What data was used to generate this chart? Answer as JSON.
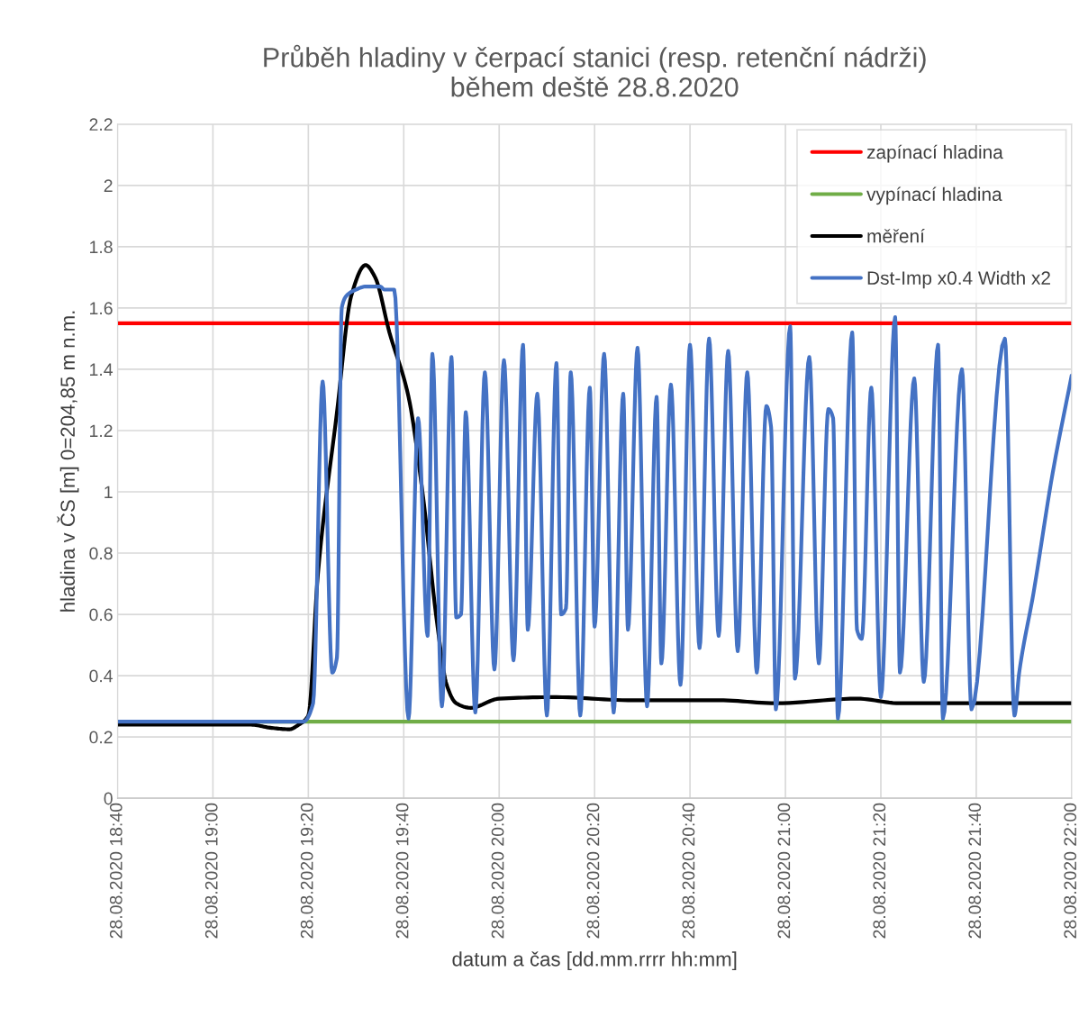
{
  "chart_data": {
    "type": "line",
    "title": "Průběh hladiny v čerpací stanici (resp. retenční nádrži)\nběhem deště 28.8.2020",
    "xlabel": "datum a čas [dd.mm.rrrr hh:mm]",
    "ylabel": "hladina v ČS [m] 0=204,85 m n.m.",
    "xlim": [
      "2020-08-28T18:40",
      "2020-08-28T22:00"
    ],
    "xticks": [
      {
        "value": "2020-08-28T18:40",
        "label": "28.08.2020 18:40"
      },
      {
        "value": "2020-08-28T19:00",
        "label": "28.08.2020 19:00"
      },
      {
        "value": "2020-08-28T19:20",
        "label": "28.08.2020 19:20"
      },
      {
        "value": "2020-08-28T19:40",
        "label": "28.08.2020 19:40"
      },
      {
        "value": "2020-08-28T20:00",
        "label": "28.08.2020 20:00"
      },
      {
        "value": "2020-08-28T20:20",
        "label": "28.08.2020 20:20"
      },
      {
        "value": "2020-08-28T20:40",
        "label": "28.08.2020 20:40"
      },
      {
        "value": "2020-08-28T21:00",
        "label": "28.08.2020 21:00"
      },
      {
        "value": "2020-08-28T21:20",
        "label": "28.08.2020 21:20"
      },
      {
        "value": "2020-08-28T21:40",
        "label": "28.08.2020 21:40"
      },
      {
        "value": "2020-08-28T22:00",
        "label": "28.08.2020 22:00"
      }
    ],
    "ylim": [
      0,
      2.2
    ],
    "yticks": [
      0,
      0.2,
      0.4,
      0.6,
      0.8,
      1,
      1.2,
      1.4,
      1.6,
      1.8,
      2,
      2.2
    ],
    "grid": true,
    "legend": "top right",
    "marker": "none",
    "line_style": "solid",
    "series": [
      {
        "name": "zapínací hladina",
        "color": "#ff0000",
        "x": [
          "2020-08-28T18:40",
          "2020-08-28T22:00"
        ],
        "values": [
          1.55,
          1.55
        ]
      },
      {
        "name": "vypínací hladina",
        "color": "#70ad47",
        "x": [
          "2020-08-28T18:40",
          "2020-08-28T22:00"
        ],
        "values": [
          0.25,
          0.25
        ]
      },
      {
        "name": "měření",
        "color": "#000000",
        "x": [
          "2020-08-28T18:40",
          "2020-08-28T19:08",
          "2020-08-28T19:12",
          "2020-08-28T19:16",
          "2020-08-28T19:18",
          "2020-08-28T19:20",
          "2020-08-28T19:22",
          "2020-08-28T19:26",
          "2020-08-28T19:29",
          "2020-08-28T19:32",
          "2020-08-28T19:34",
          "2020-08-28T19:37",
          "2020-08-28T19:41",
          "2020-08-28T19:44",
          "2020-08-28T19:47",
          "2020-08-28T19:49",
          "2020-08-28T19:51",
          "2020-08-28T19:54",
          "2020-08-28T20:00",
          "2020-08-28T20:12",
          "2020-08-28T20:27",
          "2020-08-28T20:46",
          "2020-08-28T20:58",
          "2020-08-28T21:15",
          "2020-08-28T21:24",
          "2020-08-28T22:00"
        ],
        "values": [
          0.24,
          0.24,
          0.23,
          0.225,
          0.24,
          0.27,
          0.73,
          1.26,
          1.64,
          1.74,
          1.7,
          1.52,
          1.31,
          0.99,
          0.57,
          0.37,
          0.31,
          0.295,
          0.325,
          0.33,
          0.32,
          0.32,
          0.31,
          0.325,
          0.31,
          0.31
        ]
      },
      {
        "name": "Dst-Imp x0.4 Width x2",
        "color": "#4472c4",
        "x": [
          "2020-08-28T18:40",
          "2020-08-28T19:19",
          "2020-08-28T19:21",
          "2020-08-28T19:23",
          "2020-08-28T19:25",
          "2020-08-28T19:26",
          "2020-08-28T19:27",
          "2020-08-28T19:28",
          "2020-08-28T19:30",
          "2020-08-28T19:32",
          "2020-08-28T19:35",
          "2020-08-28T19:36",
          "2020-08-28T19:38",
          "2020-08-28T19:41",
          "2020-08-28T19:43",
          "2020-08-28T19:45",
          "2020-08-28T19:46",
          "2020-08-28T19:48",
          "2020-08-28T19:50",
          "2020-08-28T19:51",
          "2020-08-28T19:52",
          "2020-08-28T19:53",
          "2020-08-28T19:55",
          "2020-08-28T19:57",
          "2020-08-28T19:59",
          "2020-08-28T20:01",
          "2020-08-28T20:03",
          "2020-08-28T20:05",
          "2020-08-28T20:06",
          "2020-08-28T20:08",
          "2020-08-28T20:10",
          "2020-08-28T20:12",
          "2020-08-28T20:13",
          "2020-08-28T20:14",
          "2020-08-28T20:15",
          "2020-08-28T20:17",
          "2020-08-28T20:19",
          "2020-08-28T20:20",
          "2020-08-28T20:22",
          "2020-08-28T20:24",
          "2020-08-28T20:26",
          "2020-08-28T20:27",
          "2020-08-28T20:29",
          "2020-08-28T20:31",
          "2020-08-28T20:33",
          "2020-08-28T20:34",
          "2020-08-28T20:36",
          "2020-08-28T20:38",
          "2020-08-28T20:40",
          "2020-08-28T20:42",
          "2020-08-28T20:44",
          "2020-08-28T20:46",
          "2020-08-28T20:48",
          "2020-08-28T20:50",
          "2020-08-28T20:52",
          "2020-08-28T20:54",
          "2020-08-28T20:56",
          "2020-08-28T20:57",
          "2020-08-28T20:58",
          "2020-08-28T21:01",
          "2020-08-28T21:02",
          "2020-08-28T21:05",
          "2020-08-28T21:07",
          "2020-08-28T21:09",
          "2020-08-28T21:10",
          "2020-08-28T21:11",
          "2020-08-28T21:14",
          "2020-08-28T21:15",
          "2020-08-28T21:16",
          "2020-08-28T21:18",
          "2020-08-28T21:20",
          "2020-08-28T21:23",
          "2020-08-28T21:24",
          "2020-08-28T21:27",
          "2020-08-28T21:29",
          "2020-08-28T21:32",
          "2020-08-28T21:33",
          "2020-08-28T21:37",
          "2020-08-28T21:39",
          "2020-08-28T21:46",
          "2020-08-28T21:48",
          "2020-08-28T21:49",
          "2020-08-28T21:52",
          "2020-08-28T21:56",
          "2020-08-28T22:00"
        ],
        "values": [
          0.25,
          0.25,
          0.31,
          1.36,
          0.41,
          0.46,
          1.6,
          1.64,
          1.66,
          1.67,
          1.67,
          1.66,
          1.66,
          0.26,
          1.24,
          0.53,
          1.45,
          0.3,
          1.44,
          0.59,
          0.6,
          1.26,
          0.28,
          1.39,
          0.42,
          1.43,
          0.45,
          1.48,
          0.55,
          1.32,
          0.27,
          1.42,
          0.6,
          0.62,
          1.39,
          0.27,
          1.34,
          0.56,
          1.45,
          0.28,
          1.32,
          0.55,
          1.47,
          0.3,
          1.31,
          0.44,
          1.35,
          0.37,
          1.48,
          0.49,
          1.5,
          0.53,
          1.46,
          0.48,
          1.39,
          0.41,
          1.28,
          1.21,
          0.29,
          1.54,
          0.39,
          1.44,
          0.44,
          1.27,
          1.24,
          0.26,
          1.52,
          0.55,
          0.52,
          1.34,
          0.33,
          1.57,
          0.41,
          1.37,
          0.38,
          1.48,
          0.26,
          1.4,
          0.29,
          1.5,
          0.27,
          0.41,
          0.67,
          1.06,
          1.38
        ]
      }
    ]
  }
}
